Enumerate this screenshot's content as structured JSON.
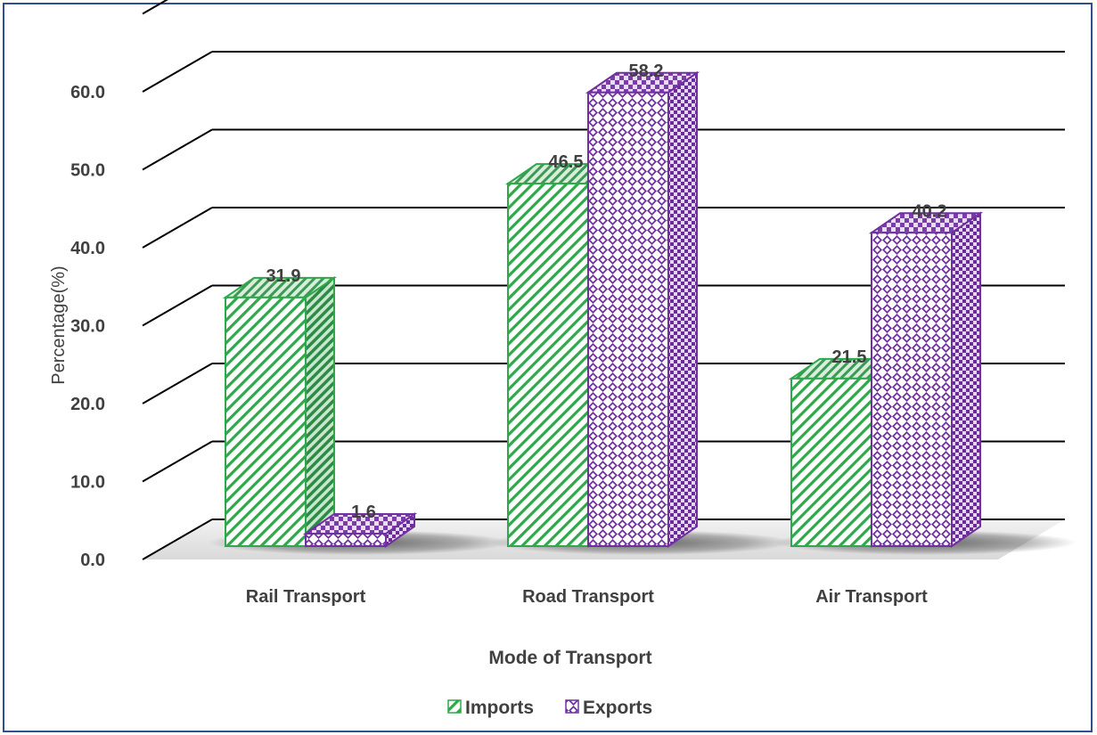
{
  "chart_data": {
    "type": "bar",
    "categories": [
      "Rail Transport",
      "Road Transport",
      "Air Transport"
    ],
    "series": [
      {
        "name": "Imports",
        "values": [
          31.9,
          46.5,
          21.5
        ],
        "color": "#2ea84a"
      },
      {
        "name": "Exports",
        "values": [
          1.6,
          58.2,
          40.2
        ],
        "color": "#7030a0"
      }
    ],
    "data_labels": [
      "31.9",
      "46.5",
      "21.5",
      "1.6",
      "58.2",
      "40.2"
    ],
    "y_ticks": [
      "0.0",
      "10.0",
      "20.0",
      "30.0",
      "40.0",
      "50.0",
      "60.0"
    ],
    "xlabel": "Mode of Transport",
    "ylabel": "Percentage(%)",
    "ylim": [
      0,
      60
    ],
    "grid": true,
    "three_d": true,
    "legend_position": "bottom"
  },
  "colors": {
    "frame": "#2f4f8f",
    "gridline": "#000000",
    "imports": "#2ea84a",
    "exports": "#7030a0"
  }
}
